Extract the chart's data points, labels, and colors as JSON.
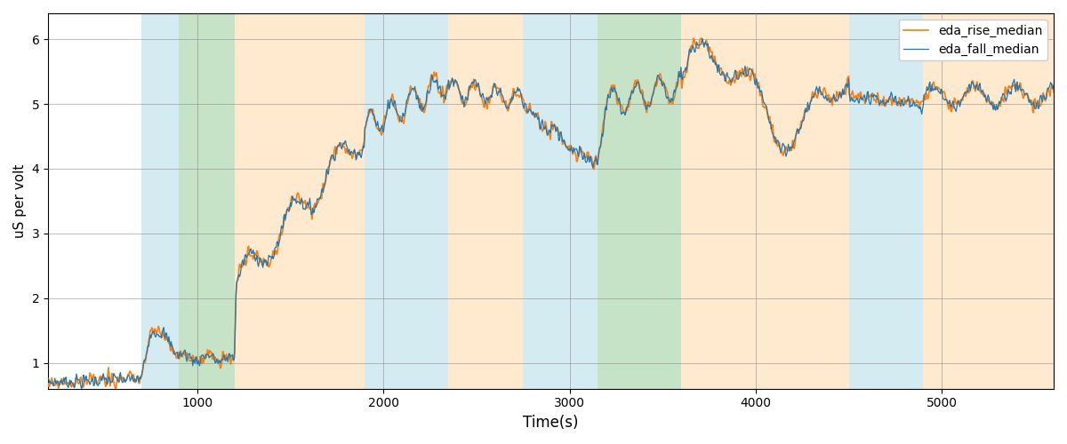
{
  "xlabel": "Time(s)",
  "ylabel": "uS per volt",
  "legend_labels": [
    "eda_fall_median",
    "eda_rise_median"
  ],
  "line_colors": [
    "#1f77b4",
    "#ff7f0e"
  ],
  "ylim": [
    0.6,
    6.4
  ],
  "xlim": [
    200,
    5600
  ],
  "background_bands": [
    {
      "start": 700,
      "end": 900,
      "color": "#add8e6",
      "alpha": 0.5
    },
    {
      "start": 900,
      "end": 1200,
      "color": "#90c990",
      "alpha": 0.5
    },
    {
      "start": 1200,
      "end": 1900,
      "color": "#ffd5a0",
      "alpha": 0.5
    },
    {
      "start": 1900,
      "end": 2350,
      "color": "#add8e6",
      "alpha": 0.5
    },
    {
      "start": 2350,
      "end": 2750,
      "color": "#ffd5a0",
      "alpha": 0.5
    },
    {
      "start": 2750,
      "end": 2900,
      "color": "#add8e6",
      "alpha": 0.5
    },
    {
      "start": 2900,
      "end": 3150,
      "color": "#add8e6",
      "alpha": 0.5
    },
    {
      "start": 3150,
      "end": 3600,
      "color": "#90c990",
      "alpha": 0.5
    },
    {
      "start": 3600,
      "end": 4500,
      "color": "#ffd5a0",
      "alpha": 0.5
    },
    {
      "start": 4500,
      "end": 4900,
      "color": "#add8e6",
      "alpha": 0.5
    },
    {
      "start": 4900,
      "end": 5700,
      "color": "#ffd5a0",
      "alpha": 0.5
    }
  ],
  "fig_width": 12,
  "fig_height": 5
}
